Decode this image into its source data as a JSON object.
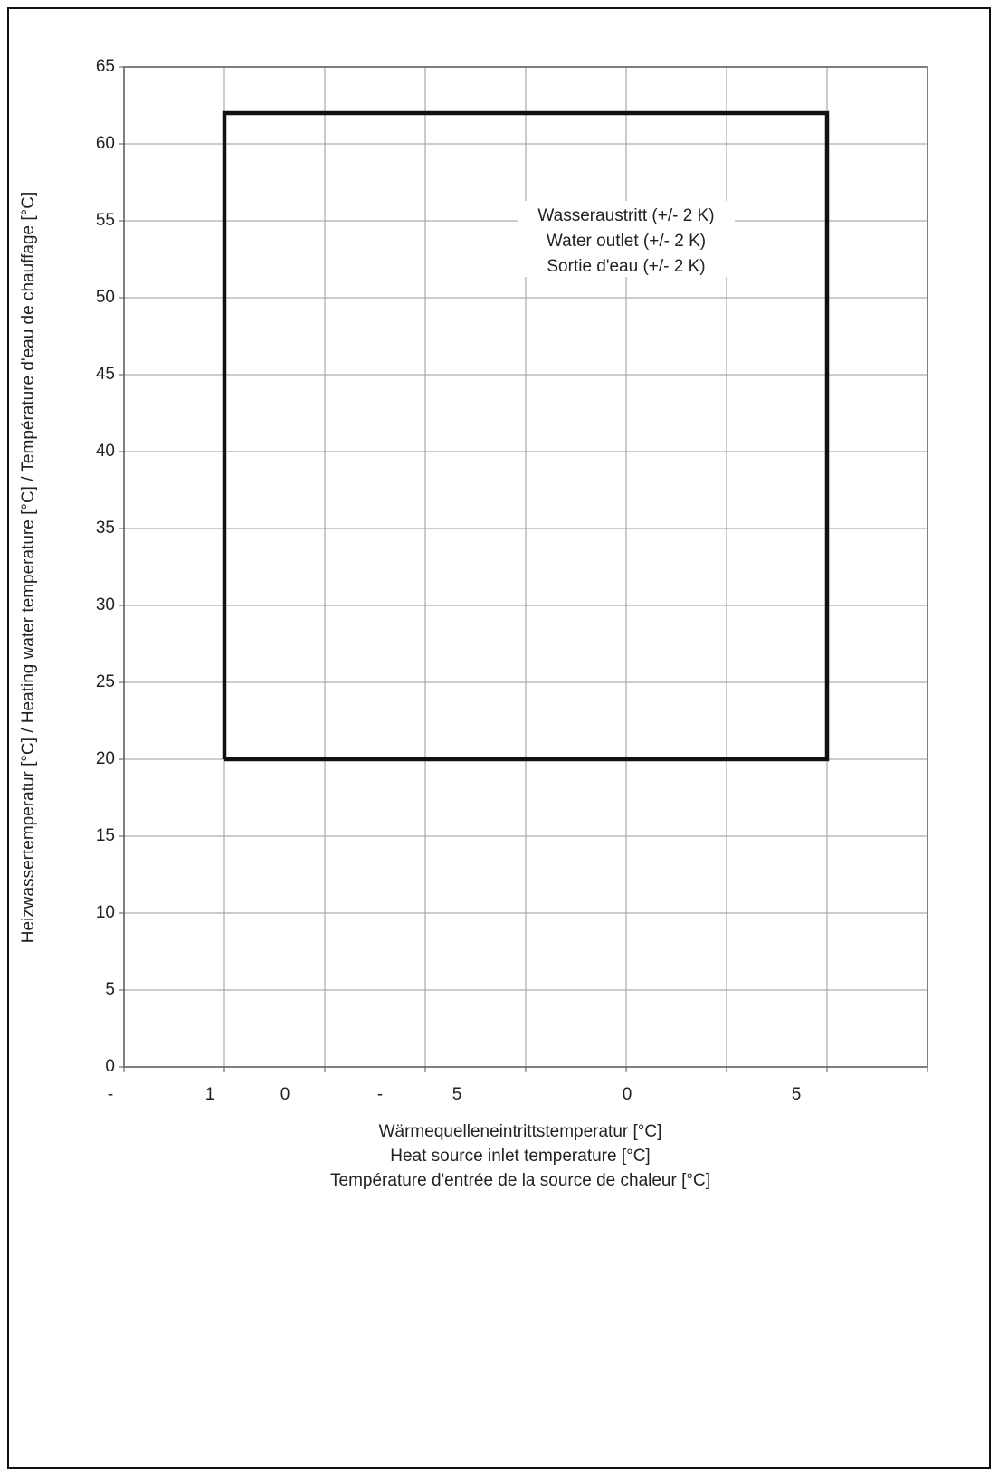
{
  "chart_data": {
    "type": "line",
    "xlabel": [
      "Wärmequelleneintrittstemperatur [°C]",
      "Heat source inlet temperature [°C]",
      "Température d'entrée de la source de chaleur  [°C]"
    ],
    "ylabel": "Heizwassertemperatur [°C]  /  Heating water temperature [°C]  /  Température d'eau de chauffage [°C]",
    "annotation": [
      "Wasseraustritt  (+/- 2 K)",
      "Water outlet (+/- 2 K)",
      "Sortie d'eau (+/- 2 K)"
    ],
    "x_tick_labels": [
      "-",
      "1",
      "0",
      "-",
      "5",
      "0",
      "5"
    ],
    "xlim": [
      -15,
      25
    ],
    "xticks": [
      -15,
      -10,
      -5,
      0,
      5,
      10,
      15,
      20,
      25
    ],
    "ylim": [
      0,
      65
    ],
    "yticks": [
      0,
      5,
      10,
      15,
      20,
      25,
      30,
      35,
      40,
      45,
      50,
      55,
      60,
      65
    ],
    "grid": true,
    "series": [
      {
        "color": "#111111",
        "x": [
          -10,
          -10,
          20,
          20,
          -10
        ],
        "values": [
          20,
          62,
          62,
          20,
          20
        ]
      }
    ]
  }
}
